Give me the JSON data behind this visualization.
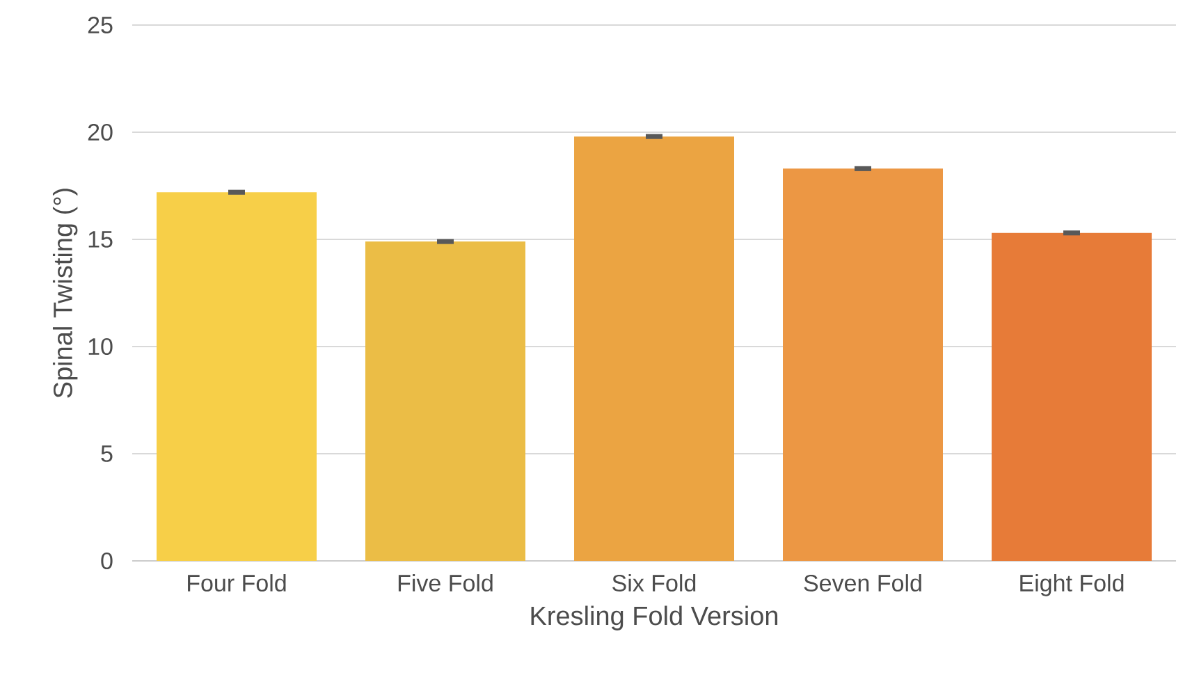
{
  "chart_data": {
    "type": "bar",
    "xlabel": "Kresling Fold Version",
    "ylabel": "Spinal Twisting (°)",
    "categories": [
      "Four Fold",
      "Five Fold",
      "Six Fold",
      "Seven Fold",
      "Eight Fold"
    ],
    "values": [
      17.2,
      14.9,
      19.8,
      18.3,
      15.3
    ],
    "errors": [
      0.05,
      0.05,
      0.05,
      0.05,
      0.05
    ],
    "colors": [
      "#f7cf48",
      "#ebbd46",
      "#eba442",
      "#ec9744",
      "#e77b38"
    ],
    "ylim": [
      0,
      25
    ],
    "yticks": [
      0,
      5,
      10,
      15,
      20,
      25
    ],
    "grid": "y"
  }
}
